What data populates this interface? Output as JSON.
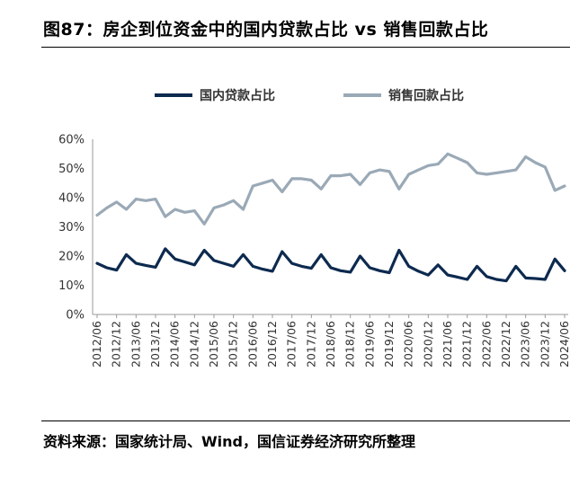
{
  "figure_title": "图87：房企到位资金中的国内贷款占比 vs 销售回款占比",
  "source_label": "资料来源：",
  "source_text": "国家统计局、Wind，国信证券经济研究所整理",
  "chart_data": {
    "type": "line",
    "x": [
      "2012/06",
      "2012/09",
      "2012/12",
      "2013/03",
      "2013/06",
      "2013/09",
      "2013/12",
      "2014/03",
      "2014/06",
      "2014/09",
      "2014/12",
      "2015/03",
      "2015/06",
      "2015/09",
      "2015/12",
      "2016/03",
      "2016/06",
      "2016/09",
      "2016/12",
      "2017/03",
      "2017/06",
      "2017/09",
      "2017/12",
      "2018/03",
      "2018/06",
      "2018/09",
      "2018/12",
      "2019/03",
      "2019/06",
      "2019/09",
      "2019/12",
      "2020/03",
      "2020/06",
      "2020/09",
      "2020/12",
      "2021/03",
      "2021/06",
      "2021/09",
      "2021/12",
      "2022/03",
      "2022/06",
      "2022/09",
      "2022/12",
      "2023/03",
      "2023/06",
      "2023/09",
      "2023/12",
      "2024/03",
      "2024/06"
    ],
    "x_tick_labels": [
      "2012/06",
      "2012/12",
      "2013/06",
      "2013/12",
      "2014/06",
      "2014/12",
      "2015/06",
      "2015/12",
      "2016/06",
      "2016/12",
      "2017/06",
      "2017/12",
      "2018/06",
      "2018/12",
      "2019/06",
      "2019/12",
      "2020/06",
      "2020/12",
      "2021/06",
      "2021/12",
      "2022/06",
      "2022/12",
      "2023/06",
      "2023/12",
      "2024/06"
    ],
    "y_ticks": [
      "0%",
      "10%",
      "20%",
      "30%",
      "40%",
      "50%",
      "60%"
    ],
    "ylim": [
      0,
      60
    ],
    "y_unit": "%",
    "grid": false,
    "legend_position": "top",
    "series": [
      {
        "name": "国内贷款占比",
        "color": "#0d2a4f",
        "values": [
          17.5,
          16.0,
          15.2,
          20.5,
          17.5,
          16.8,
          16.2,
          22.5,
          19.0,
          18.0,
          17.0,
          22.0,
          18.5,
          17.5,
          16.5,
          20.5,
          16.5,
          15.5,
          14.8,
          21.5,
          17.5,
          16.5,
          15.8,
          20.5,
          16.0,
          15.0,
          14.5,
          20.0,
          16.0,
          15.0,
          14.3,
          22.0,
          16.5,
          14.8,
          13.5,
          17.0,
          13.5,
          12.8,
          12.0,
          16.5,
          13.0,
          12.0,
          11.5,
          16.5,
          12.5,
          12.3,
          12.0,
          19.0,
          15.0
        ]
      },
      {
        "name": "销售回款占比",
        "color": "#9aa9b6",
        "values": [
          34.0,
          36.5,
          38.5,
          36.0,
          39.5,
          39.0,
          39.5,
          33.5,
          36.0,
          35.0,
          35.5,
          31.0,
          36.5,
          37.5,
          39.0,
          36.0,
          44.0,
          45.0,
          46.0,
          42.0,
          46.5,
          46.5,
          46.0,
          43.0,
          47.5,
          47.5,
          48.0,
          44.5,
          48.5,
          49.5,
          49.0,
          43.0,
          48.0,
          49.5,
          51.0,
          51.5,
          55.0,
          53.5,
          52.0,
          48.5,
          48.0,
          48.5,
          49.0,
          49.5,
          54.0,
          52.0,
          50.5,
          42.5,
          44.0
        ]
      }
    ]
  }
}
